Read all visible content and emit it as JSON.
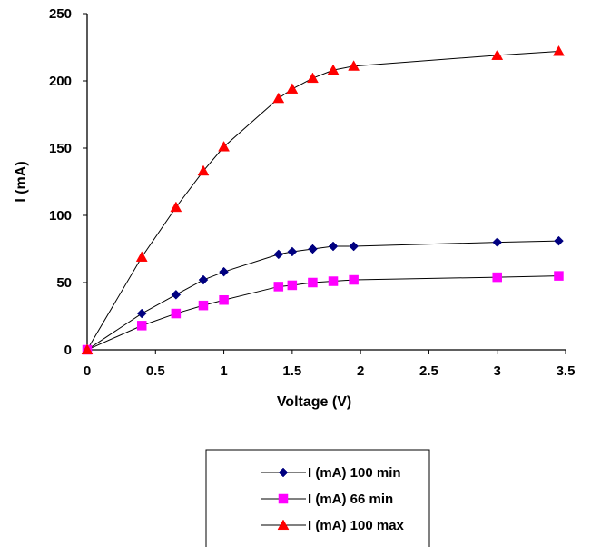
{
  "chart_data": {
    "type": "line",
    "title": "",
    "xlabel": "Voltage (V)",
    "ylabel": "I (mA)",
    "xlim": [
      0,
      3.5
    ],
    "ylim": [
      0,
      250
    ],
    "x_ticks": [
      "0",
      "0.5",
      "1",
      "1.5",
      "2",
      "2.5",
      "3",
      "3.5"
    ],
    "y_ticks": [
      "0",
      "50",
      "100",
      "150",
      "200",
      "250"
    ],
    "grid": false,
    "legend_position": "bottom",
    "series": [
      {
        "name": "I (mA) 100 min",
        "color": "#000080",
        "marker": "diamond",
        "x": [
          0,
          0.4,
          0.65,
          0.85,
          1.0,
          1.4,
          1.5,
          1.65,
          1.8,
          1.95,
          3.0,
          3.45
        ],
        "y": [
          0,
          27,
          41,
          52,
          58,
          71,
          73,
          75,
          77,
          77,
          80,
          81
        ]
      },
      {
        "name": "I (mA) 66 min",
        "color": "#ff00ff",
        "marker": "square",
        "x": [
          0,
          0.4,
          0.65,
          0.85,
          1.0,
          1.4,
          1.5,
          1.65,
          1.8,
          1.95,
          3.0,
          3.45
        ],
        "y": [
          0,
          18,
          27,
          33,
          37,
          47,
          48,
          50,
          51,
          52,
          54,
          55
        ]
      },
      {
        "name": "I (mA) 100 max",
        "color": "#ff0000",
        "marker": "triangle",
        "x": [
          0,
          0.4,
          0.65,
          0.85,
          1.0,
          1.4,
          1.5,
          1.65,
          1.8,
          1.95,
          3.0,
          3.45
        ],
        "y": [
          0,
          69,
          106,
          133,
          151,
          187,
          194,
          202,
          208,
          211,
          219,
          222
        ]
      }
    ]
  }
}
